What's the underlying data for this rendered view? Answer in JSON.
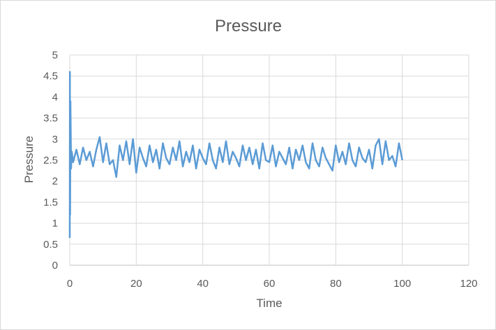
{
  "chart_data": {
    "type": "line",
    "title": "Pressure",
    "xlabel": "Time",
    "ylabel": "Pressure",
    "xlim": [
      0,
      120
    ],
    "ylim": [
      0,
      5
    ],
    "x_ticks": [
      "0",
      "20",
      "40",
      "60",
      "80",
      "100",
      "120"
    ],
    "y_ticks": [
      "0",
      "0.5",
      "1",
      "1.5",
      "2",
      "2.5",
      "3",
      "3.5",
      "4",
      "4.5",
      "5"
    ],
    "grid": true,
    "legend": "none",
    "color": "#5b9bd5",
    "series": [
      {
        "x": [
          0,
          0.05,
          0.1,
          0.2,
          0.4,
          0.6,
          1,
          2,
          3,
          4,
          5,
          6,
          7,
          8,
          9,
          10,
          11,
          12,
          13,
          14,
          15,
          16,
          17,
          18,
          19,
          20,
          21,
          22,
          23,
          24,
          25,
          26,
          27,
          28,
          29,
          30,
          31,
          32,
          33,
          34,
          35,
          36,
          37,
          38,
          39,
          40,
          41,
          42,
          43,
          44,
          45,
          46,
          47,
          48,
          49,
          50,
          51,
          52,
          53,
          54,
          55,
          56,
          57,
          58,
          59,
          60,
          61,
          62,
          63,
          64,
          65,
          66,
          67,
          68,
          69,
          70,
          71,
          72,
          73,
          74,
          75,
          76,
          77,
          78,
          79,
          80,
          81,
          82,
          83,
          84,
          85,
          86,
          87,
          88,
          89,
          90,
          91,
          92,
          93,
          94,
          95,
          96,
          97,
          98,
          99,
          100
        ],
        "y": [
          0.65,
          4.6,
          1.2,
          3.9,
          2.3,
          2.7,
          2.45,
          2.75,
          2.4,
          2.8,
          2.5,
          2.7,
          2.35,
          2.75,
          3.05,
          2.45,
          2.9,
          2.4,
          2.5,
          2.1,
          2.85,
          2.5,
          2.95,
          2.4,
          3.0,
          2.2,
          2.8,
          2.55,
          2.35,
          2.85,
          2.45,
          2.75,
          2.3,
          2.9,
          2.55,
          2.4,
          2.8,
          2.5,
          2.95,
          2.35,
          2.7,
          2.45,
          2.85,
          2.3,
          2.75,
          2.55,
          2.4,
          2.9,
          2.5,
          2.3,
          2.8,
          2.45,
          2.95,
          2.4,
          2.7,
          2.55,
          2.35,
          2.85,
          2.5,
          2.8,
          2.4,
          2.75,
          2.3,
          2.9,
          2.5,
          2.45,
          2.85,
          2.35,
          2.7,
          2.55,
          2.4,
          2.8,
          2.3,
          2.75,
          2.5,
          2.85,
          2.45,
          2.3,
          2.9,
          2.5,
          2.35,
          2.8,
          2.55,
          2.4,
          2.25,
          2.85,
          2.45,
          2.7,
          2.4,
          2.9,
          2.5,
          2.35,
          2.8,
          2.55,
          2.45,
          2.75,
          2.3,
          2.85,
          3.0,
          2.4,
          2.95,
          2.5,
          2.6,
          2.35,
          2.9,
          2.5
        ]
      }
    ]
  }
}
